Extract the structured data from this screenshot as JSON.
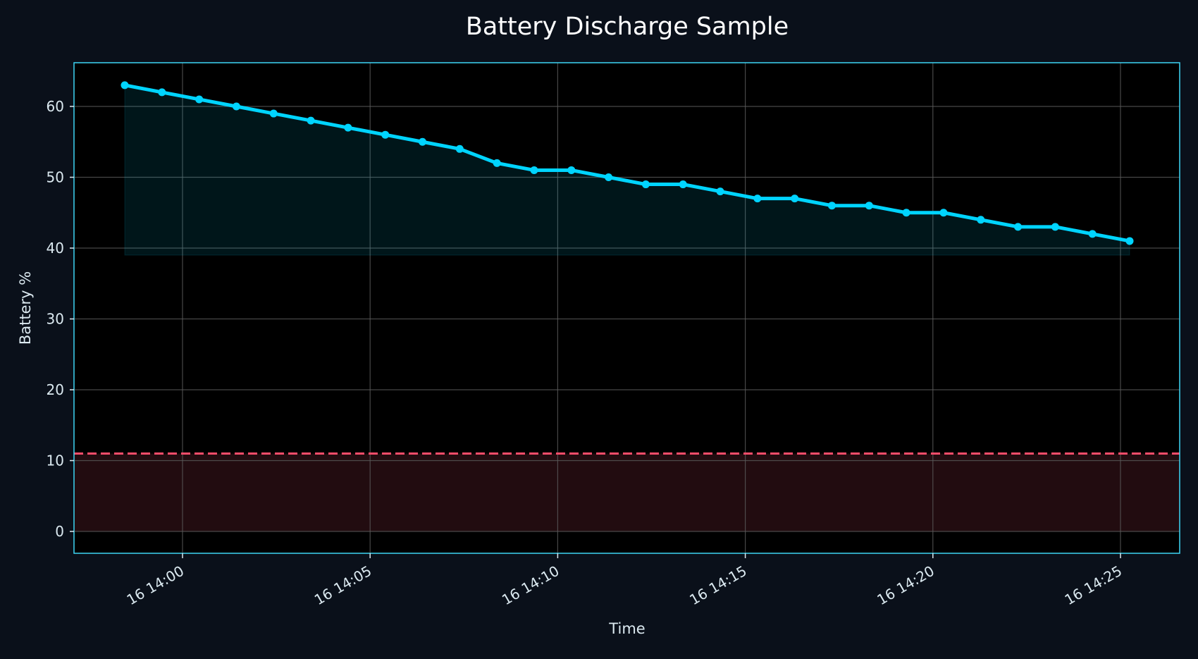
{
  "chart_data": {
    "type": "line",
    "title": "Battery Discharge Sample",
    "xlabel": "Time",
    "ylabel": "Battery %",
    "ylim": [
      -3,
      66
    ],
    "yticks": [
      0,
      10,
      20,
      30,
      40,
      50,
      60
    ],
    "xtick_labels": [
      "16 14:00",
      "16 14:05",
      "16 14:10",
      "16 14:15",
      "16 14:20",
      "16 14:25"
    ],
    "grid": true,
    "series": [
      {
        "name": "Battery %",
        "color": "#00d4ff",
        "values": [
          63,
          62,
          61,
          60,
          59,
          58,
          57,
          56,
          55,
          54,
          52,
          51,
          51,
          50,
          49,
          49,
          48,
          47,
          47,
          46,
          46,
          45,
          45,
          44,
          43,
          43,
          42,
          41
        ]
      }
    ],
    "fill_to": 39,
    "threshold": {
      "value": 11,
      "color": "#ff4d6a",
      "style": "dashed"
    },
    "low_zone": {
      "from": 0,
      "to": 11,
      "color": "#220c10"
    }
  },
  "colors": {
    "background": "#0a101a",
    "plot_bg": "#000000",
    "axis_border": "#3dd6f5",
    "grid": "#4a4a4a",
    "tick_text": "#dbe9f0"
  }
}
